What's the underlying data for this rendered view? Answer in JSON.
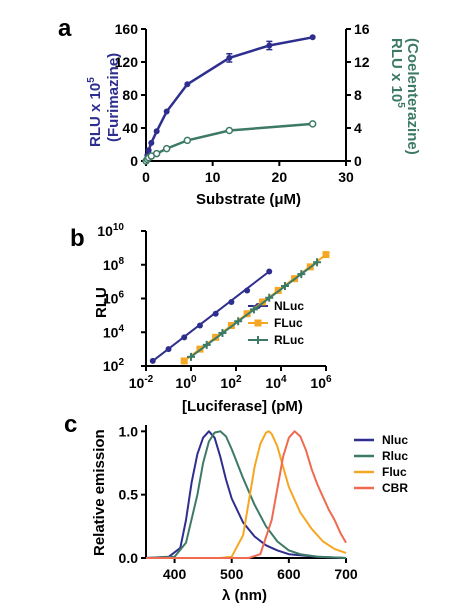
{
  "chart_data": [
    {
      "panel": "a",
      "type": "line",
      "xlabel": "Substrate (μM)",
      "ylabel_left": "RLU x 10",
      "ylabel_left_exp": "5",
      "ylabel_left_sub": "(Furimazine)",
      "ylabel_right": "RLU x 10",
      "ylabel_right_exp": "5",
      "ylabel_right_sub": "(Coelenterazine)",
      "xlim": [
        0,
        30
      ],
      "ylim_left": [
        0,
        160
      ],
      "ylim_right": [
        0,
        16
      ],
      "xticks": [
        0,
        10,
        20,
        30
      ],
      "yticks_left": [
        0,
        40,
        80,
        120,
        160
      ],
      "yticks_right": [
        0,
        4,
        8,
        12,
        16
      ],
      "series": [
        {
          "axis": "left",
          "color": "#2e2e8f",
          "marker": "filled-circle",
          "x": [
            0,
            0.2,
            0.4,
            0.8,
            1.6,
            3.1,
            6.2,
            12.5,
            18.5,
            25
          ],
          "y": [
            0,
            7,
            13,
            22,
            36,
            60,
            93,
            125,
            140,
            150
          ],
          "err": [
            0,
            0,
            0,
            0,
            0,
            0,
            0,
            5,
            5,
            0
          ]
        },
        {
          "axis": "right",
          "color": "#3d7a66",
          "marker": "open-circle",
          "x": [
            0,
            0.2,
            0.4,
            0.8,
            1.6,
            3.1,
            6.2,
            12.5,
            25
          ],
          "y": [
            0,
            0.2,
            0.4,
            0.6,
            0.9,
            1.5,
            2.5,
            3.7,
            4.5
          ],
          "err": [
            0,
            0,
            0,
            0,
            0,
            0,
            0,
            0,
            0
          ]
        }
      ]
    },
    {
      "panel": "b",
      "type": "scatter",
      "scale": "log-log",
      "xlabel": "[Luciferase] (pM)",
      "ylabel": "RLU",
      "xlim": [
        0.01,
        1000000
      ],
      "ylim": [
        100,
        10000000000
      ],
      "xticks": [
        "10",
        "10",
        "10",
        "10",
        "10"
      ],
      "xtick_exps": [
        "-2",
        "0",
        "2",
        "4",
        "6"
      ],
      "yticks": [
        "10",
        "10",
        "10",
        "10",
        "10"
      ],
      "ytick_exps": [
        "2",
        "4",
        "6",
        "8",
        "10"
      ],
      "legend_position": "right",
      "series": [
        {
          "name": "NLuc",
          "color": "#2e2e8f",
          "marker": "circle",
          "x": [
            0.02,
            0.1,
            0.5,
            2.5,
            12.5,
            62.5,
            312,
            3000
          ],
          "y": [
            200,
            1000,
            5000,
            25000,
            125000,
            625000,
            3000000,
            40000000
          ]
        },
        {
          "name": "FLuc",
          "color": "#f5a623",
          "marker": "square",
          "x": [
            0.5,
            2.5,
            12.5,
            62.5,
            312,
            1500,
            7500,
            40000,
            200000,
            1000000
          ],
          "y": [
            200,
            1000,
            5000,
            25000,
            125000,
            625000,
            3000000,
            15000000,
            75000000,
            400000000
          ]
        },
        {
          "name": "RLuc",
          "color": "#3d7a66",
          "marker": "plus",
          "x": [
            1,
            5,
            25,
            125,
            625,
            3000,
            15000,
            80000,
            400000
          ],
          "y": [
            350,
            1800,
            9000,
            45000,
            225000,
            1100000,
            5500000,
            28000000,
            140000000
          ]
        }
      ]
    },
    {
      "panel": "c",
      "type": "line",
      "xlabel": "λ (nm)",
      "ylabel": "Relative emission",
      "xlim": [
        350,
        700
      ],
      "ylim": [
        0,
        1.05
      ],
      "xticks": [
        400,
        500,
        600,
        700
      ],
      "yticks": [
        "0.0",
        "0.5",
        "1.0"
      ],
      "legend_position": "top-right",
      "series": [
        {
          "name": "Nluc",
          "color": "#2e2e8f",
          "x": [
            350,
            390,
            410,
            420,
            430,
            440,
            450,
            460,
            470,
            480,
            490,
            500,
            520,
            540,
            560,
            580,
            600,
            650,
            700
          ],
          "y": [
            0,
            0.01,
            0.08,
            0.3,
            0.6,
            0.82,
            0.95,
            1.0,
            0.95,
            0.8,
            0.62,
            0.47,
            0.28,
            0.17,
            0.1,
            0.06,
            0.03,
            0.01,
            0
          ]
        },
        {
          "name": "Rluc",
          "color": "#3d7a66",
          "x": [
            350,
            400,
            420,
            440,
            450,
            460,
            470,
            480,
            490,
            500,
            520,
            540,
            560,
            580,
            600,
            620,
            650,
            700
          ],
          "y": [
            0,
            0.01,
            0.12,
            0.5,
            0.75,
            0.92,
            0.99,
            1.0,
            0.96,
            0.86,
            0.63,
            0.42,
            0.25,
            0.13,
            0.06,
            0.03,
            0.01,
            0
          ]
        },
        {
          "name": "Fluc",
          "color": "#f5a623",
          "x": [
            350,
            480,
            500,
            520,
            530,
            540,
            550,
            560,
            565,
            570,
            580,
            590,
            600,
            620,
            640,
            660,
            680,
            700
          ],
          "y": [
            0,
            0,
            0.01,
            0.18,
            0.45,
            0.72,
            0.9,
            0.99,
            1.0,
            0.98,
            0.88,
            0.72,
            0.56,
            0.36,
            0.23,
            0.13,
            0.07,
            0.04
          ]
        },
        {
          "name": "CBR",
          "color": "#ef6a50",
          "x": [
            350,
            530,
            550,
            570,
            580,
            590,
            600,
            610,
            620,
            630,
            640,
            650,
            660,
            670,
            680,
            690,
            700
          ],
          "y": [
            0,
            0,
            0.03,
            0.3,
            0.55,
            0.8,
            0.95,
            1.0,
            0.96,
            0.85,
            0.7,
            0.58,
            0.48,
            0.38,
            0.3,
            0.2,
            0.12
          ]
        }
      ]
    }
  ]
}
